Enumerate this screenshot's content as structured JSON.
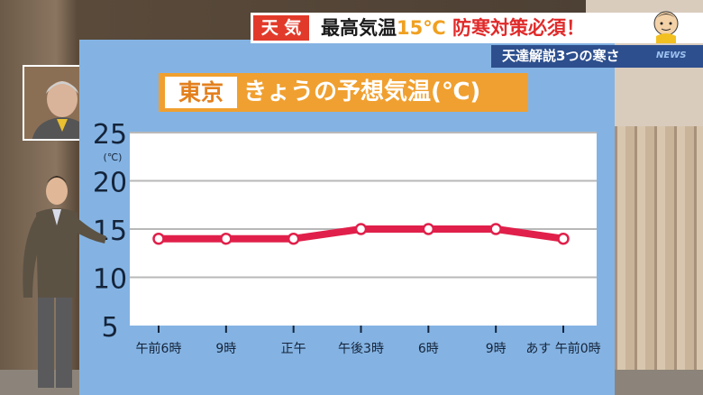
{
  "banner": {
    "tag": "天 気",
    "headline_pre": "最高気温",
    "headline_temp": "15℃",
    "headline_post": "防寒対策必須！",
    "sub": "天達解説3つの寒さ",
    "logo": "NEWS"
  },
  "board": {
    "city": "東京",
    "title": "きょうの予想気温(℃)"
  },
  "colors": {
    "board": "#84b3e3",
    "title_bg": "#f0a030",
    "line": "#e0204a",
    "banner_red": "#e23a2a",
    "subbanner": "#2d4f8e"
  },
  "chart_data": {
    "type": "line",
    "unit_label": "(℃)",
    "categories": [
      "午前6時",
      "9時",
      "正午",
      "午後3時",
      "6時",
      "9時",
      "あす 午前0時"
    ],
    "values": [
      14,
      14,
      14,
      15,
      15,
      15,
      14
    ],
    "yticks": [
      5,
      10,
      15,
      20,
      25
    ],
    "ylim": [
      5,
      25
    ],
    "grid": true
  }
}
